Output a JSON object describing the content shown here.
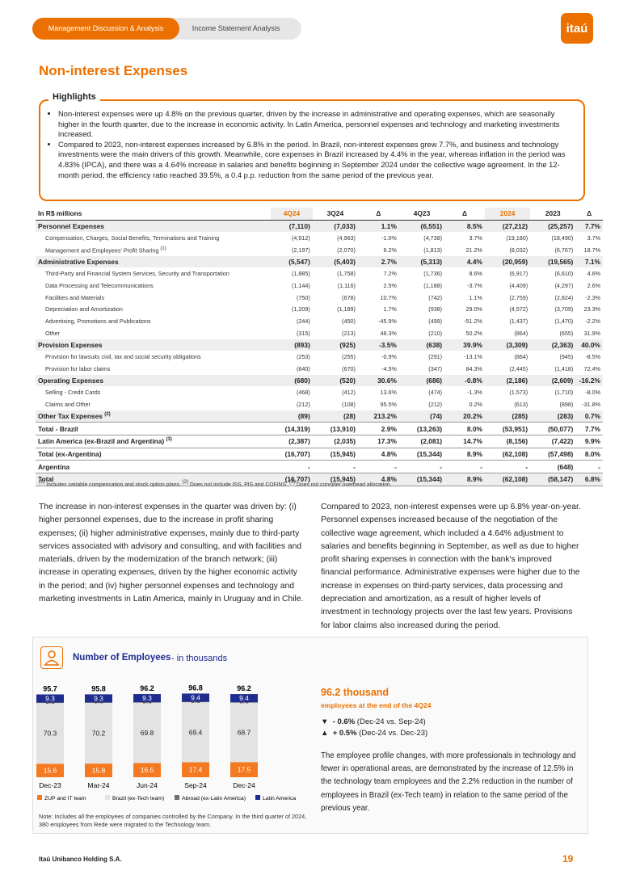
{
  "header": {
    "tabs": [
      "Management Discussion & Analysis",
      "Income Statement Analysis"
    ],
    "logo": "itaú"
  },
  "title": "Non-interest Expenses",
  "highlights": {
    "title": "Highlights",
    "bullets": [
      "Non-interest expenses were up 4.8% on the previous quarter, driven by the increase in administrative and operating expenses, which are seasonally higher in the fourth quarter, due to the increase in economic activity. In Latin America, personnel expenses and technology and marketing investments increased.",
      "Compared to 2023, non-interest expenses increased by 6.8% in the period. In Brazil, non-interest expenses grew 7.7%, and business and technology investments were the main drivers of this growth. Meanwhile, core expenses in Brazil increased by 4.4% in the year, whereas inflation in the period was 4.83% (IPCA), and there was a 4.64% increase in salaries and benefits beginning in September 2024 under the collective wage agreement. In the 12-month period, the efficiency ratio reached 39.5%, a 0.4 p.p. reduction from the same period of the previous year."
    ]
  },
  "table": {
    "header": [
      "In R$ millions",
      "4Q24",
      "3Q24",
      "Δ",
      "4Q23",
      "Δ",
      "2024",
      "2023",
      "Δ"
    ],
    "rows": [
      {
        "label": "Personnel Expenses",
        "values": [
          "(7,110)",
          "(7,033)",
          "1.1%",
          "(6,551)",
          "8.5%",
          "(27,212)",
          "(25,257)",
          "7.7%"
        ]
      },
      {
        "label": "Compensation, Charges, Social Benefits, Terminations and Training",
        "values": [
          "(4,912)",
          "(4,963)",
          "-1.0%",
          "(4,738)",
          "3.7%",
          "(19,180)",
          "(18,490)",
          "3.7%"
        ]
      },
      {
        "label": "Management and Employees' Profit Sharing",
        "note": "(1)",
        "values": [
          "(2,197)",
          "(2,070)",
          "6.2%",
          "(1,813)",
          "21.2%",
          "(8,032)",
          "(6,767)",
          "18.7%"
        ]
      },
      {
        "label": "Administrative Expenses",
        "values": [
          "(5,547)",
          "(5,403)",
          "2.7%",
          "(5,313)",
          "4.4%",
          "(20,959)",
          "(19,565)",
          "7.1%"
        ]
      },
      {
        "label": "Third-Party and Financial System Services, Security and Transportation",
        "values": [
          "(1,885)",
          "(1,758)",
          "7.2%",
          "(1,736)",
          "8.6%",
          "(6,917)",
          "(6,610)",
          "4.6%"
        ]
      },
      {
        "label": "Data Processing and Telecommunications",
        "values": [
          "(1,144)",
          "(1,116)",
          "2.5%",
          "(1,188)",
          "-3.7%",
          "(4,409)",
          "(4,297)",
          "2.6%"
        ]
      },
      {
        "label": "Facilities and Materials",
        "values": [
          "(750)",
          "(678)",
          "10.7%",
          "(742)",
          "1.1%",
          "(2,759)",
          "(2,824)",
          "-2.3%"
        ]
      },
      {
        "label": "Depreciation and Amortization",
        "values": [
          "(1,209)",
          "(1,189)",
          "1.7%",
          "(938)",
          "29.0%",
          "(4,572)",
          "(3,709)",
          "23.3%"
        ]
      },
      {
        "label": "Advertising, Promotions and Publications",
        "values": [
          "(244)",
          "(450)",
          "-45.9%",
          "(499)",
          "-51.2%",
          "(1,437)",
          "(1,470)",
          "-2.2%"
        ]
      },
      {
        "label": "Other",
        "values": [
          "(315)",
          "(213)",
          "48.3%",
          "(210)",
          "50.2%",
          "(864)",
          "(655)",
          "31.9%"
        ]
      },
      {
        "label": "Provision Expenses",
        "values": [
          "(893)",
          "(925)",
          "-3.5%",
          "(638)",
          "39.9%",
          "(3,309)",
          "(2,363)",
          "40.0%"
        ]
      },
      {
        "label": "Provision for lawsuits civil, tax and social security obligations",
        "values": [
          "(253)",
          "(255)",
          "-0.9%",
          "(291)",
          "-13.1%",
          "(864)",
          "(945)",
          "-8.5%"
        ]
      },
      {
        "label": "Provision for labor claims",
        "values": [
          "(640)",
          "(670)",
          "-4.5%",
          "(347)",
          "84.3%",
          "(2,445)",
          "(1,418)",
          "72.4%"
        ]
      },
      {
        "label": "Operating Expenses",
        "values": [
          "(680)",
          "(520)",
          "30.6%",
          "(686)",
          "-0.8%",
          "(2,186)",
          "(2,609)",
          "-16.2%"
        ]
      },
      {
        "label": "Selling - Credit Cards",
        "values": [
          "(468)",
          "(412)",
          "13.6%",
          "(474)",
          "-1.3%",
          "(1,573)",
          "(1,710)",
          "-8.0%"
        ]
      },
      {
        "label": "Claims and Other",
        "values": [
          "(212)",
          "(108)",
          "95.5%",
          "(212)",
          "0.2%",
          "(613)",
          "(898)",
          "-31.8%"
        ]
      },
      {
        "label": "Other Tax Expenses",
        "note": "(2)",
        "values": [
          "(89)",
          "(28)",
          "213.2%",
          "(74)",
          "20.2%",
          "(285)",
          "(283)",
          "0.7%"
        ]
      },
      {
        "label": "Total - Brazil",
        "values": [
          "(14,319)",
          "(13,910)",
          "2.9%",
          "(13,263)",
          "8.0%",
          "(53,951)",
          "(50,077)",
          "7.7%"
        ]
      },
      {
        "label": "Latin America (ex-Brazil and Argentina)",
        "note": "(3)",
        "values": [
          "(2,387)",
          "(2,035)",
          "17.3%",
          "(2,081)",
          "14.7%",
          "(8,156)",
          "(7,422)",
          "9.9%"
        ]
      },
      {
        "label": "Total (ex-Argentina)",
        "values": [
          "(16,707)",
          "(15,945)",
          "4.8%",
          "(15,344)",
          "8.9%",
          "(62,108)",
          "(57,498)",
          "8.0%"
        ]
      },
      {
        "label": "Argentina",
        "values": [
          "-",
          "-",
          "-",
          "-",
          "-",
          "-",
          "(648)",
          "-"
        ]
      },
      {
        "label": "Total",
        "values": [
          "(16,707)",
          "(15,945)",
          "4.8%",
          "(15,344)",
          "8.9%",
          "(62,108)",
          "(58,147)",
          "6.8%"
        ]
      }
    ],
    "footnotes": [
      {
        "mark": "(1)",
        "text": "Includes variable compensation and stock option plans."
      },
      {
        "mark": "(2)",
        "text": "Does not include ISS, PIS and COFINS."
      },
      {
        "mark": "(3)",
        "text": "Does not consider overhead allocation."
      }
    ]
  },
  "paragraphs": [
    "The increase in non-interest expenses in the quarter was driven by: (i) higher personnel expenses, due to the increase in profit sharing expenses; (ii) higher administrative expenses, mainly due to third-party services associated with advisory and consulting, and with facilities and materials, driven by the modernization of the branch network; (iii) increase in operating expenses, driven by the higher economic activity in the period; and (iv) higher personnel expenses and technology and marketing investments in Latin America, mainly in Uruguay and in Chile.",
    "Compared to 2023, non-interest expenses were up 6.8% year-on-year. Personnel expenses increased because of the negotiation of the collective wage agreement, which included a 4.64% adjustment to salaries and benefits beginning in September, as well as due to higher profit sharing expenses in connection with the bank's improved financial performance. Administrative expenses were higher due to the increase in expenses on third-party services, data processing and depreciation and amortization, as a result of higher levels of investment in technology projects over the last few years. Provisions for labor claims also increased during the period."
  ],
  "employees": {
    "title": "Number of Employees",
    "subtitle": "- in thousands",
    "chart": {
      "type": "bar",
      "categories": [
        "Dec-23",
        "Mar-24",
        "Jun-24",
        "Sep-24",
        "Dec-24"
      ],
      "totals": [
        95.7,
        95.8,
        96.2,
        96.8,
        96.2
      ],
      "series": [
        {
          "name": "ZUP and IT team",
          "color": "#f47920",
          "values": [
            15.6,
            15.8,
            16.5,
            17.4,
            17.5
          ]
        },
        {
          "name": "Brazil (ex-Tech team)",
          "color": "#e3e3e3",
          "values": [
            70.3,
            70.2,
            69.8,
            69.4,
            68.7
          ]
        },
        {
          "name": "Abroad (ex-Latin America)",
          "color": "#6d6e71",
          "values": [
            0.6,
            0.6,
            0.6,
            0.6,
            0.6
          ]
        },
        {
          "name": "Latin America",
          "color": "#1e2d8f",
          "values": [
            9.3,
            9.3,
            9.3,
            9.4,
            9.4
          ]
        }
      ]
    },
    "headline": "96.2 thousand",
    "headline_sub": "employees at the end of the 4Q24",
    "changes": [
      {
        "value": "- 0.6%",
        "text": "(Dec-24 vs. Sep-24)"
      },
      {
        "value": "+ 0.5%",
        "text": "(Dec-24 vs. Dec-23)"
      }
    ],
    "text": "The employee profile changes, with more professionals in technology and fewer in operational areas, are demonstrated by the increase of 12.5% in the technology team employees and the 2.2% reduction in the number of employees in Brazil (ex-Tech team) in relation to the same period of the previous year.",
    "note": "Note: Includes all the employees of companies controlled by the Company. In the third quarter of 2024, 380 employees from Rede were migrated to the Technology team."
  },
  "footer": {
    "company": "Itaú Unibanco Holding S.A.",
    "page": "19"
  }
}
